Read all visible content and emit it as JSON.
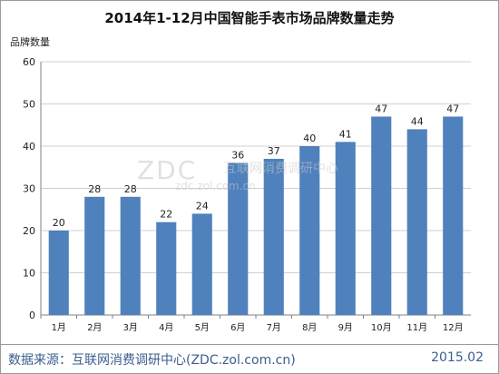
{
  "chart_data": {
    "type": "bar",
    "title": "2014年1-12月中国智能手表市场品牌数量走势",
    "ylabel": "品牌数量",
    "xlabel": "",
    "categories": [
      "1月",
      "2月",
      "3月",
      "4月",
      "5月",
      "6月",
      "7月",
      "8月",
      "9月",
      "10月",
      "11月",
      "12月"
    ],
    "values": [
      20,
      28,
      28,
      22,
      24,
      36,
      37,
      40,
      41,
      47,
      44,
      47
    ],
    "ylim": [
      0,
      60
    ],
    "yticks": [
      "0",
      "10",
      "20",
      "30",
      "40",
      "50",
      "60"
    ],
    "grid": true,
    "legend": "none",
    "bar_color": "#4f81bd"
  },
  "watermark": {
    "main": "ZDC",
    "sub": "zdc.zol.com.cn",
    "cn": "互联网消费调研中心"
  },
  "footer": {
    "source": "数据来源：互联网消费调研中心(ZDC.zol.com.cn)",
    "date": "2015.02"
  }
}
